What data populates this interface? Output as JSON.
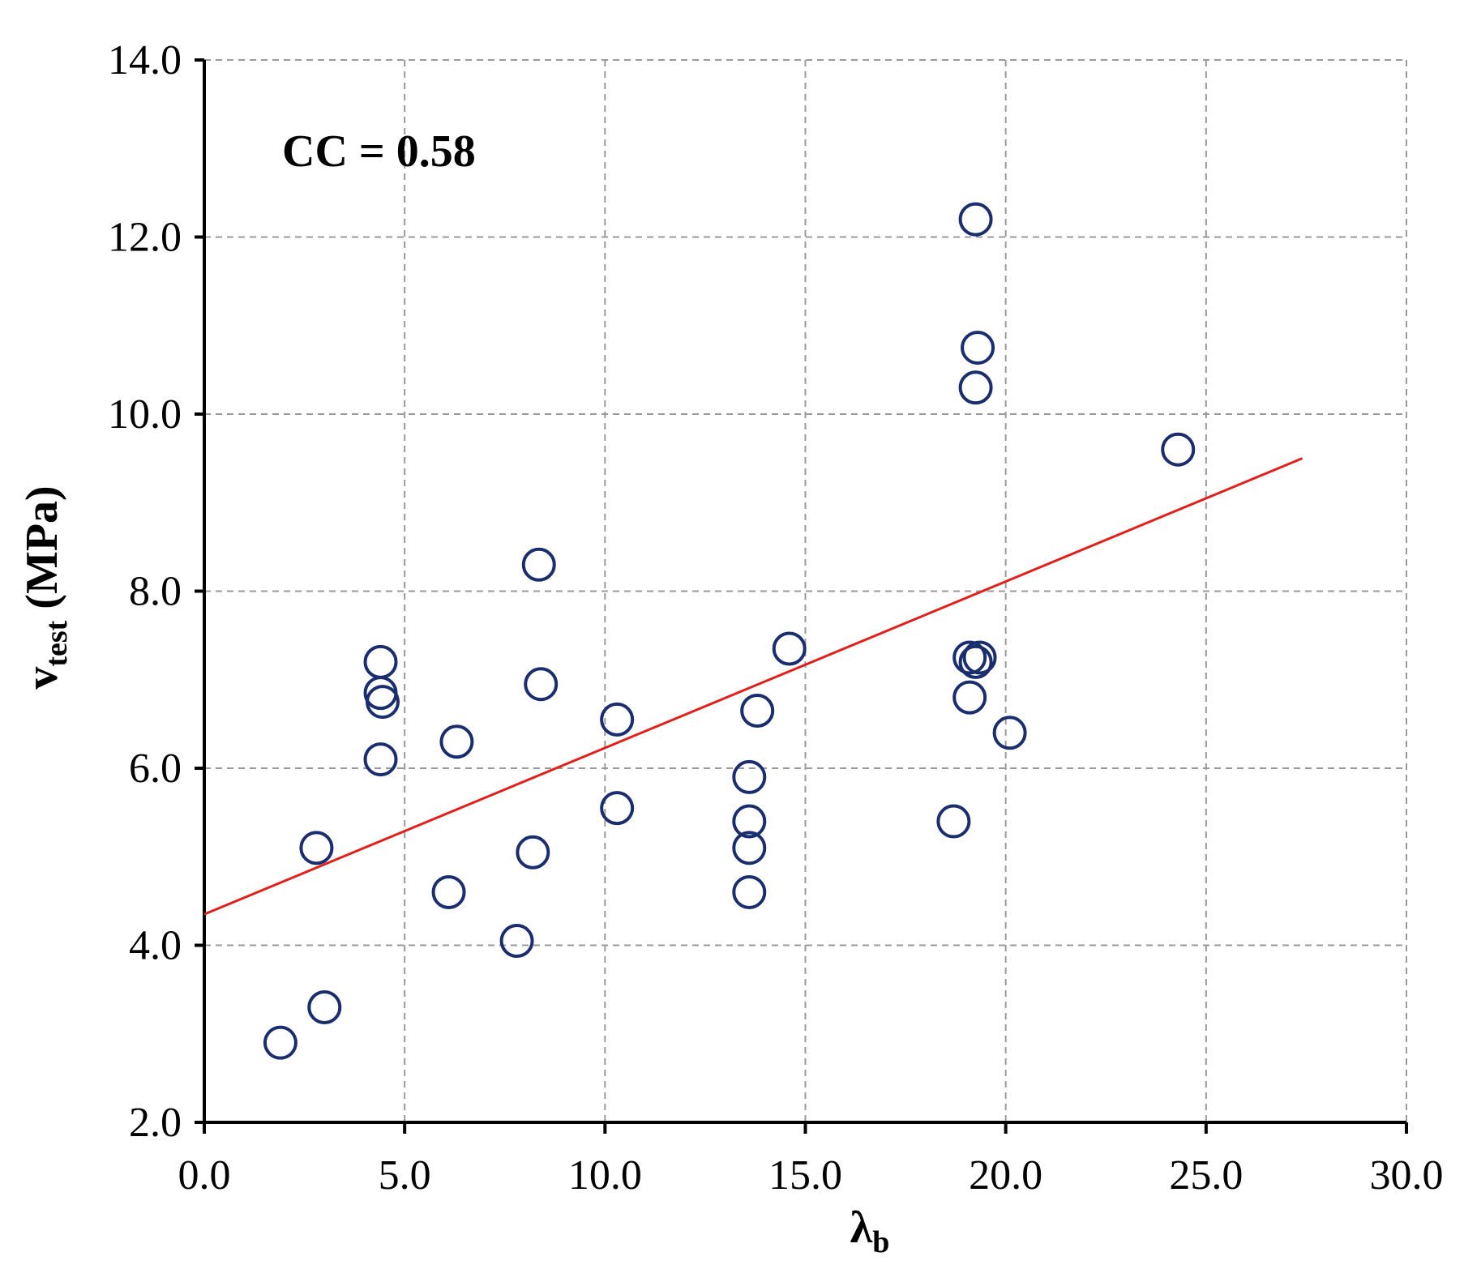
{
  "chart_data": {
    "type": "scatter",
    "title": "",
    "annotation": "CC = 0.58",
    "xlabel": {
      "main": "λ",
      "sub": "b"
    },
    "ylabel": {
      "main": "v",
      "sub": "test",
      "suffix": " (MPa)"
    },
    "xlim": [
      0,
      30
    ],
    "ylim": [
      2,
      14
    ],
    "xticks": [
      0,
      5,
      10,
      15,
      20,
      25,
      30
    ],
    "yticks": [
      2,
      4,
      6,
      8,
      10,
      12,
      14
    ],
    "xtick_labels": [
      "0.0",
      "5.0",
      "10.0",
      "15.0",
      "20.0",
      "25.0",
      "30.0"
    ],
    "ytick_labels": [
      "2.0",
      "4.0",
      "6.0",
      "8.0",
      "10.0",
      "12.0",
      "14.0"
    ],
    "grid": true,
    "marker_color": "#1a2d6e",
    "trend_color": "#e0201b",
    "points": [
      [
        1.9,
        2.9
      ],
      [
        2.8,
        5.1
      ],
      [
        3.0,
        3.3
      ],
      [
        4.4,
        7.2
      ],
      [
        4.4,
        6.85
      ],
      [
        4.45,
        6.75
      ],
      [
        4.4,
        6.1
      ],
      [
        6.1,
        4.6
      ],
      [
        6.3,
        6.3
      ],
      [
        7.8,
        4.05
      ],
      [
        8.2,
        5.05
      ],
      [
        8.35,
        8.3
      ],
      [
        8.4,
        6.95
      ],
      [
        10.3,
        6.55
      ],
      [
        10.3,
        5.55
      ],
      [
        13.6,
        5.9
      ],
      [
        13.6,
        5.4
      ],
      [
        13.6,
        5.1
      ],
      [
        13.6,
        4.6
      ],
      [
        13.8,
        6.65
      ],
      [
        14.6,
        7.35
      ],
      [
        18.7,
        5.4
      ],
      [
        19.1,
        7.25
      ],
      [
        19.1,
        6.8
      ],
      [
        19.25,
        7.2
      ],
      [
        19.35,
        7.25
      ],
      [
        19.25,
        12.2
      ],
      [
        19.3,
        10.75
      ],
      [
        19.25,
        10.3
      ],
      [
        20.1,
        6.4
      ],
      [
        24.3,
        9.6
      ]
    ],
    "trendline": {
      "x": [
        0,
        27.4
      ],
      "y": [
        4.35,
        9.5
      ]
    }
  }
}
